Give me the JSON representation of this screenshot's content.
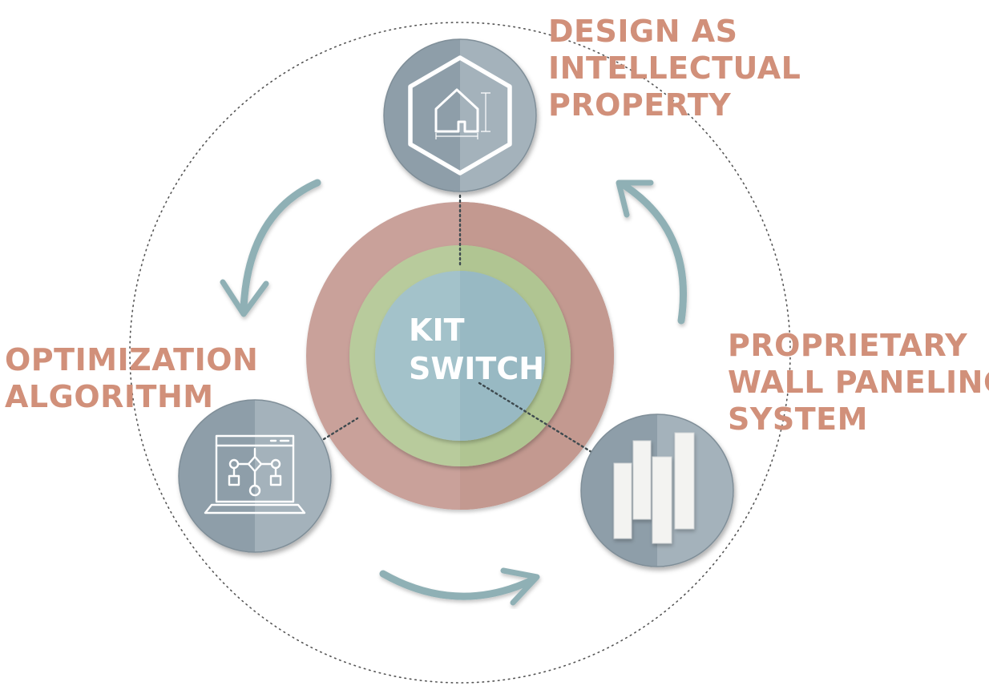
{
  "colors": {
    "label": "#d1907a",
    "outer_ring": "#c9a19a",
    "middle_ring": "#b6c99a",
    "core": "#9fbfc8",
    "node": "#95a4ae",
    "arrow": "#8fb0b5"
  },
  "center": {
    "line1": "KIT",
    "line2": "SWITCH"
  },
  "nodes": [
    {
      "id": "design",
      "icon": "house-hexagon-icon",
      "lines": [
        "DESIGN AS",
        "INTELLECTUAL",
        "PROPERTY"
      ]
    },
    {
      "id": "optimization",
      "icon": "laptop-flowchart-icon",
      "lines": [
        "OPTIMIZATION",
        "ALGORITHM"
      ]
    },
    {
      "id": "paneling",
      "icon": "wall-panels-icon",
      "lines": [
        "PROPRIETARY",
        "WALL PANELING",
        "SYSTEM"
      ]
    }
  ]
}
